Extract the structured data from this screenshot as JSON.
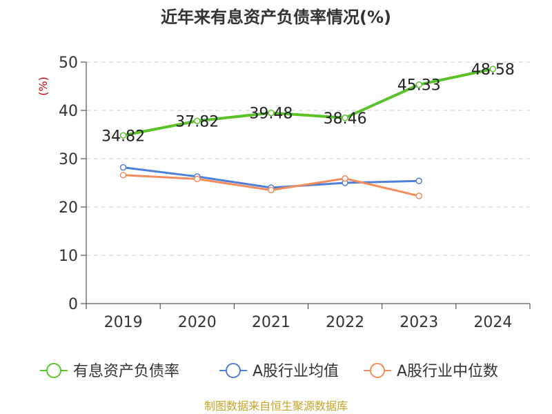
{
  "chart_data": {
    "type": "line",
    "title": "近年来有息资产负债率情况(%)",
    "ylabel": "(%)",
    "xlabel": "",
    "categories": [
      "2019",
      "2020",
      "2021",
      "2022",
      "2023",
      "2024"
    ],
    "ylim": [
      0,
      50
    ],
    "yticks": [
      "0",
      "10",
      "20",
      "30",
      "40",
      "50"
    ],
    "grid": true,
    "legend_position": "bottom",
    "series": [
      {
        "name": "有息资产负债率",
        "color": "#5ac229",
        "values": [
          34.82,
          37.82,
          39.48,
          38.46,
          45.33,
          48.58
        ],
        "labels": [
          "34.82",
          "37.82",
          "39.48",
          "38.46",
          "45.33",
          "48.58"
        ]
      },
      {
        "name": "A股行业均值",
        "color": "#4f7fd8",
        "values": [
          28.2,
          26.3,
          24.0,
          25.0,
          25.4,
          null
        ]
      },
      {
        "name": "A股行业中位数",
        "color": "#f28c5b",
        "values": [
          26.6,
          25.8,
          23.5,
          25.9,
          22.3,
          null
        ]
      }
    ]
  },
  "source_text": "制图数据来自恒生聚源数据库",
  "colors": {
    "ylabel": "#cc0000",
    "source": "#c9a227",
    "grid": "#cccccc",
    "axis": "#333333"
  }
}
